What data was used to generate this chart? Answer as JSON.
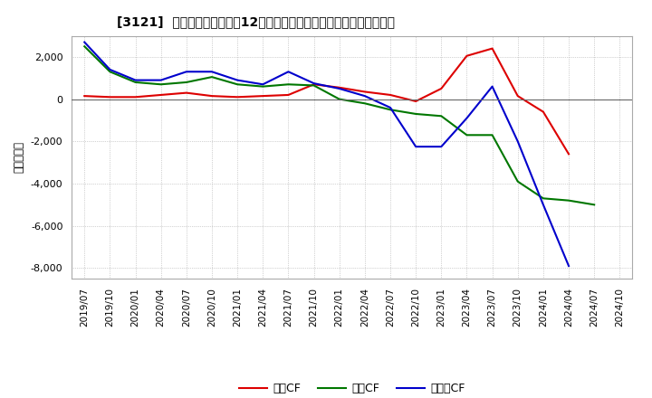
{
  "title": "[3121]  キャッシュフローの12か月移動合計の対前年同期増減額の推移",
  "ylabel": "（百万円）",
  "ylim": [
    -8500,
    3000
  ],
  "yticks": [
    2000,
    0,
    -2000,
    -4000,
    -6000,
    -8000
  ],
  "legend_labels": [
    "営業CF",
    "投資CF",
    "フリーCF"
  ],
  "legend_colors": [
    "#dd0000",
    "#007700",
    "#0000cc"
  ],
  "x_labels": [
    "2019/07",
    "2019/10",
    "2020/01",
    "2020/04",
    "2020/07",
    "2020/10",
    "2021/01",
    "2021/04",
    "2021/07",
    "2021/10",
    "2022/01",
    "2022/04",
    "2022/07",
    "2022/10",
    "2023/01",
    "2023/04",
    "2023/07",
    "2023/10",
    "2024/01",
    "2024/04",
    "2024/07",
    "2024/10"
  ],
  "operating_cf": [
    150,
    100,
    100,
    200,
    300,
    150,
    100,
    150,
    200,
    700,
    550,
    350,
    200,
    -100,
    500,
    2050,
    2400,
    150,
    -600,
    -2600,
    null,
    null
  ],
  "investing_cf": [
    2500,
    1300,
    800,
    700,
    800,
    1050,
    700,
    600,
    700,
    650,
    0,
    -200,
    -500,
    -700,
    -800,
    -1700,
    -1700,
    -3900,
    -4700,
    -4800,
    -5000,
    null
  ],
  "free_cf": [
    2700,
    1400,
    900,
    900,
    1300,
    1300,
    900,
    700,
    1300,
    750,
    500,
    150,
    -400,
    -2250,
    -2250,
    -900,
    600,
    -2000,
    -5000,
    -7900,
    null,
    null
  ],
  "background_color": "#ffffff",
  "grid_color": "#aaaaaa",
  "spine_color": "#aaaaaa"
}
